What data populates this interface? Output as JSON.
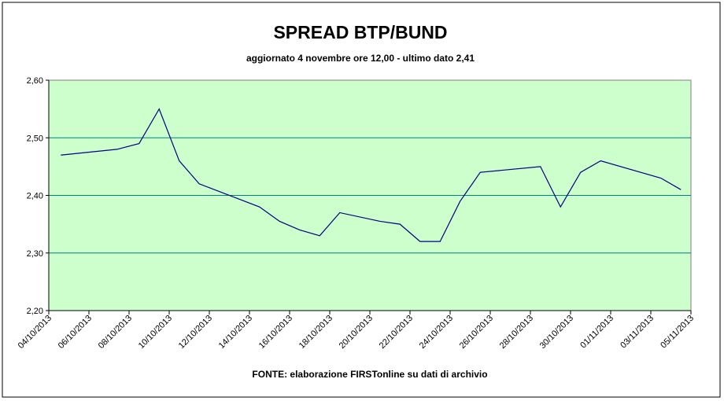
{
  "chart_data": {
    "type": "line",
    "title": "SPREAD BTP/BUND",
    "subtitle": "aggiornato 4 novembre ore 12,00 - ultimo dato 2,41",
    "source": "FONTE:  elaborazione FIRSTonline su dati di archivio",
    "x": [
      0.6,
      3.4,
      4.5,
      5.5,
      6.5,
      7.5,
      10.5,
      11.5,
      12.5,
      13.5,
      14.5,
      16.5,
      17.5,
      18.5,
      19.5,
      20.5,
      21.5,
      24.5,
      25.5,
      26.5,
      27.5,
      30.5,
      31.5
    ],
    "values": [
      2.47,
      2.48,
      2.49,
      2.55,
      2.46,
      2.42,
      2.38,
      2.355,
      2.34,
      2.33,
      2.37,
      2.355,
      2.35,
      2.32,
      2.32,
      2.39,
      2.44,
      2.45,
      2.38,
      2.44,
      2.46,
      2.43,
      2.41
    ],
    "color": "#000080",
    "xlim": [
      0,
      32
    ],
    "xticks": [
      {
        "value": 0,
        "label": "04/10/2013"
      },
      {
        "value": 2,
        "label": "06/10/2013"
      },
      {
        "value": 4,
        "label": "08/10/2013"
      },
      {
        "value": 6,
        "label": "10/10/2013"
      },
      {
        "value": 8,
        "label": "12/10/2013"
      },
      {
        "value": 10,
        "label": "14/10/2013"
      },
      {
        "value": 12,
        "label": "16/10/2013"
      },
      {
        "value": 14,
        "label": "18/10/2013"
      },
      {
        "value": 16,
        "label": "20/10/2013"
      },
      {
        "value": 18,
        "label": "22/10/2013"
      },
      {
        "value": 20,
        "label": "24/10/2013"
      },
      {
        "value": 22,
        "label": "26/10/2013"
      },
      {
        "value": 24,
        "label": "28/10/2013"
      },
      {
        "value": 26,
        "label": "30/10/2013"
      },
      {
        "value": 28,
        "label": "01/11/2013"
      },
      {
        "value": 30,
        "label": "03/11/2013"
      },
      {
        "value": 32,
        "label": "05/11/2013"
      }
    ],
    "ylim": [
      2.2,
      2.6
    ],
    "yticks": [
      {
        "value": 2.2,
        "label": "2,20"
      },
      {
        "value": 2.3,
        "label": "2,30"
      },
      {
        "value": 2.4,
        "label": "2,40"
      },
      {
        "value": 2.5,
        "label": "2,50"
      },
      {
        "value": 2.6,
        "label": "2,60"
      }
    ],
    "grid": true
  }
}
